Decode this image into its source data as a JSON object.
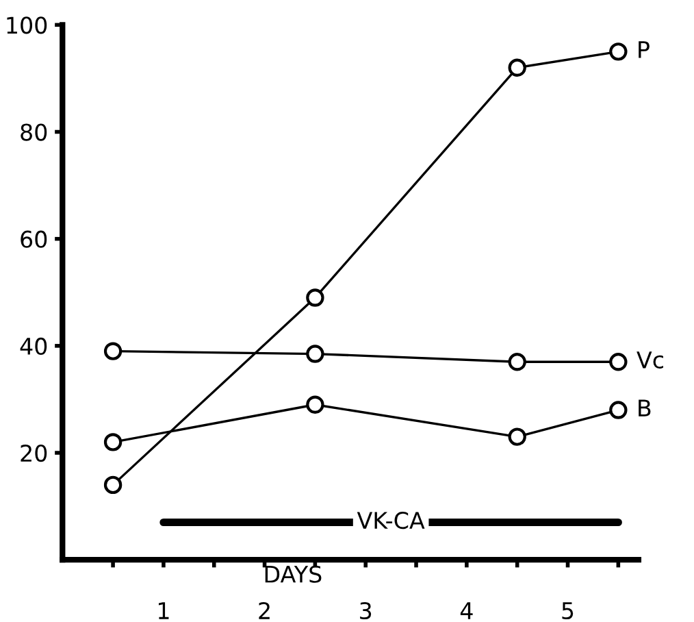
{
  "chart_data": {
    "type": "line",
    "xlabel": "DAYS",
    "xlim": [
      0,
      5.7
    ],
    "ylim": [
      0,
      100
    ],
    "xticks": [
      {
        "value": 0.5,
        "label": null
      },
      1,
      {
        "value": 1.5,
        "label": null
      },
      2,
      {
        "value": 2.5,
        "label": null
      },
      3,
      {
        "value": 3.5,
        "label": null
      },
      4,
      {
        "value": 4.5,
        "label": null
      },
      5,
      {
        "value": 5.5,
        "label": null
      }
    ],
    "yticks": [
      20,
      40,
      60,
      80,
      100
    ],
    "grid": false,
    "legend": false,
    "marker": "circle",
    "line_style": "solid",
    "series": [
      {
        "name": "P",
        "color": "#000000",
        "x": [
          0.5,
          2.5,
          4.5,
          5.5
        ],
        "values": [
          14,
          49,
          92,
          95
        ]
      },
      {
        "name": "Vc",
        "color": "#000000",
        "x": [
          0.5,
          2.5,
          4.5,
          5.5
        ],
        "values": [
          39,
          38.5,
          37,
          37
        ]
      },
      {
        "name": "B",
        "color": "#000000",
        "x": [
          0.5,
          2.5,
          4.5,
          5.5
        ],
        "values": [
          22,
          29,
          23,
          28
        ]
      },
      {
        "name": "VK-CA",
        "color": "#000000",
        "marker": "none",
        "x": [
          1.0,
          5.5
        ],
        "values": [
          7,
          7
        ]
      }
    ]
  }
}
